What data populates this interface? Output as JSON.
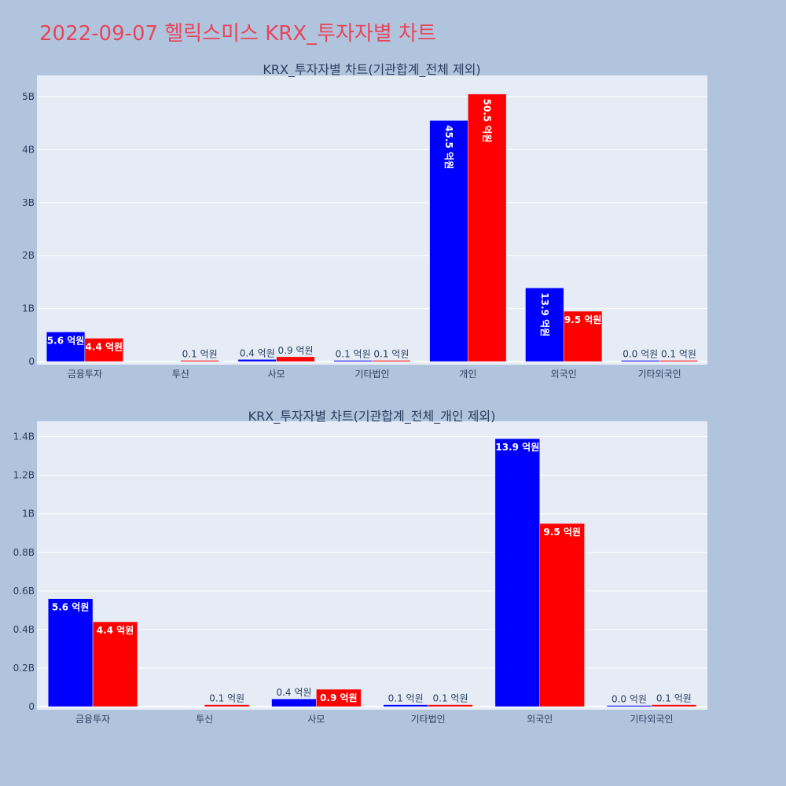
{
  "page": {
    "title": "2022-09-07 헬릭스미스 KRX_투자자별 차트"
  },
  "colors": {
    "series1": "#0000ff",
    "series2": "#ff0000",
    "plot_bg": "#e5ecf6",
    "page_bg": "#b0c4de",
    "title": "#e8455b"
  },
  "chart_data": [
    {
      "type": "bar",
      "title": "KRX_투자자별 차트(기관합계_전체 제외)",
      "categories": [
        "금융투자",
        "투신",
        "사모",
        "기타법인",
        "개인",
        "외국인",
        "기타외국인"
      ],
      "ylim": [
        0,
        5400000000
      ],
      "y_ticks": [
        0,
        1000000000,
        2000000000,
        3000000000,
        4000000000,
        5000000000
      ],
      "y_tick_labels": [
        "0",
        "1B",
        "2B",
        "3B",
        "4B",
        "5B"
      ],
      "grid": true,
      "legend": "none",
      "series": [
        {
          "color": "#0000ff",
          "values": [
            560000000,
            0,
            40000000,
            10000000,
            4550000000,
            1390000000,
            3000000
          ],
          "labels": [
            "5.6 억원",
            "",
            "0.4 억원",
            "0.1 억원",
            "45.5 억원",
            "13.9 억원",
            "0.0 억원"
          ]
        },
        {
          "color": "#ff0000",
          "values": [
            440000000,
            10000000,
            90000000,
            10000000,
            5050000000,
            950000000,
            10000000
          ],
          "labels": [
            "4.4 억원",
            "0.1 억원",
            "0.9 억원",
            "0.1 억원",
            "50.5 억원",
            "9.5 억원",
            "0.1 억원"
          ]
        }
      ]
    },
    {
      "type": "bar",
      "title": "KRX_투자자별 차트(기관합계_전체_개인 제외)",
      "categories": [
        "금융투자",
        "투신",
        "사모",
        "기타법인",
        "외국인",
        "기타외국인"
      ],
      "ylim": [
        0,
        1480000000
      ],
      "y_ticks": [
        0,
        200000000,
        400000000,
        600000000,
        800000000,
        1000000000,
        1200000000,
        1400000000
      ],
      "y_tick_labels": [
        "0",
        "0.2B",
        "0.4B",
        "0.6B",
        "0.8B",
        "1B",
        "1.2B",
        "1.4B"
      ],
      "grid": true,
      "legend": "none",
      "series": [
        {
          "color": "#0000ff",
          "values": [
            560000000,
            0,
            40000000,
            10000000,
            1390000000,
            3000000
          ],
          "labels": [
            "5.6 억원",
            "",
            "0.4 억원",
            "0.1 억원",
            "13.9 억원",
            "0.0 억원"
          ]
        },
        {
          "color": "#ff0000",
          "values": [
            440000000,
            10000000,
            90000000,
            10000000,
            950000000,
            10000000
          ],
          "labels": [
            "4.4 억원",
            "0.1 억원",
            "0.9 억원",
            "0.1 억원",
            "9.5 억원",
            "0.1 억원"
          ]
        }
      ]
    }
  ]
}
